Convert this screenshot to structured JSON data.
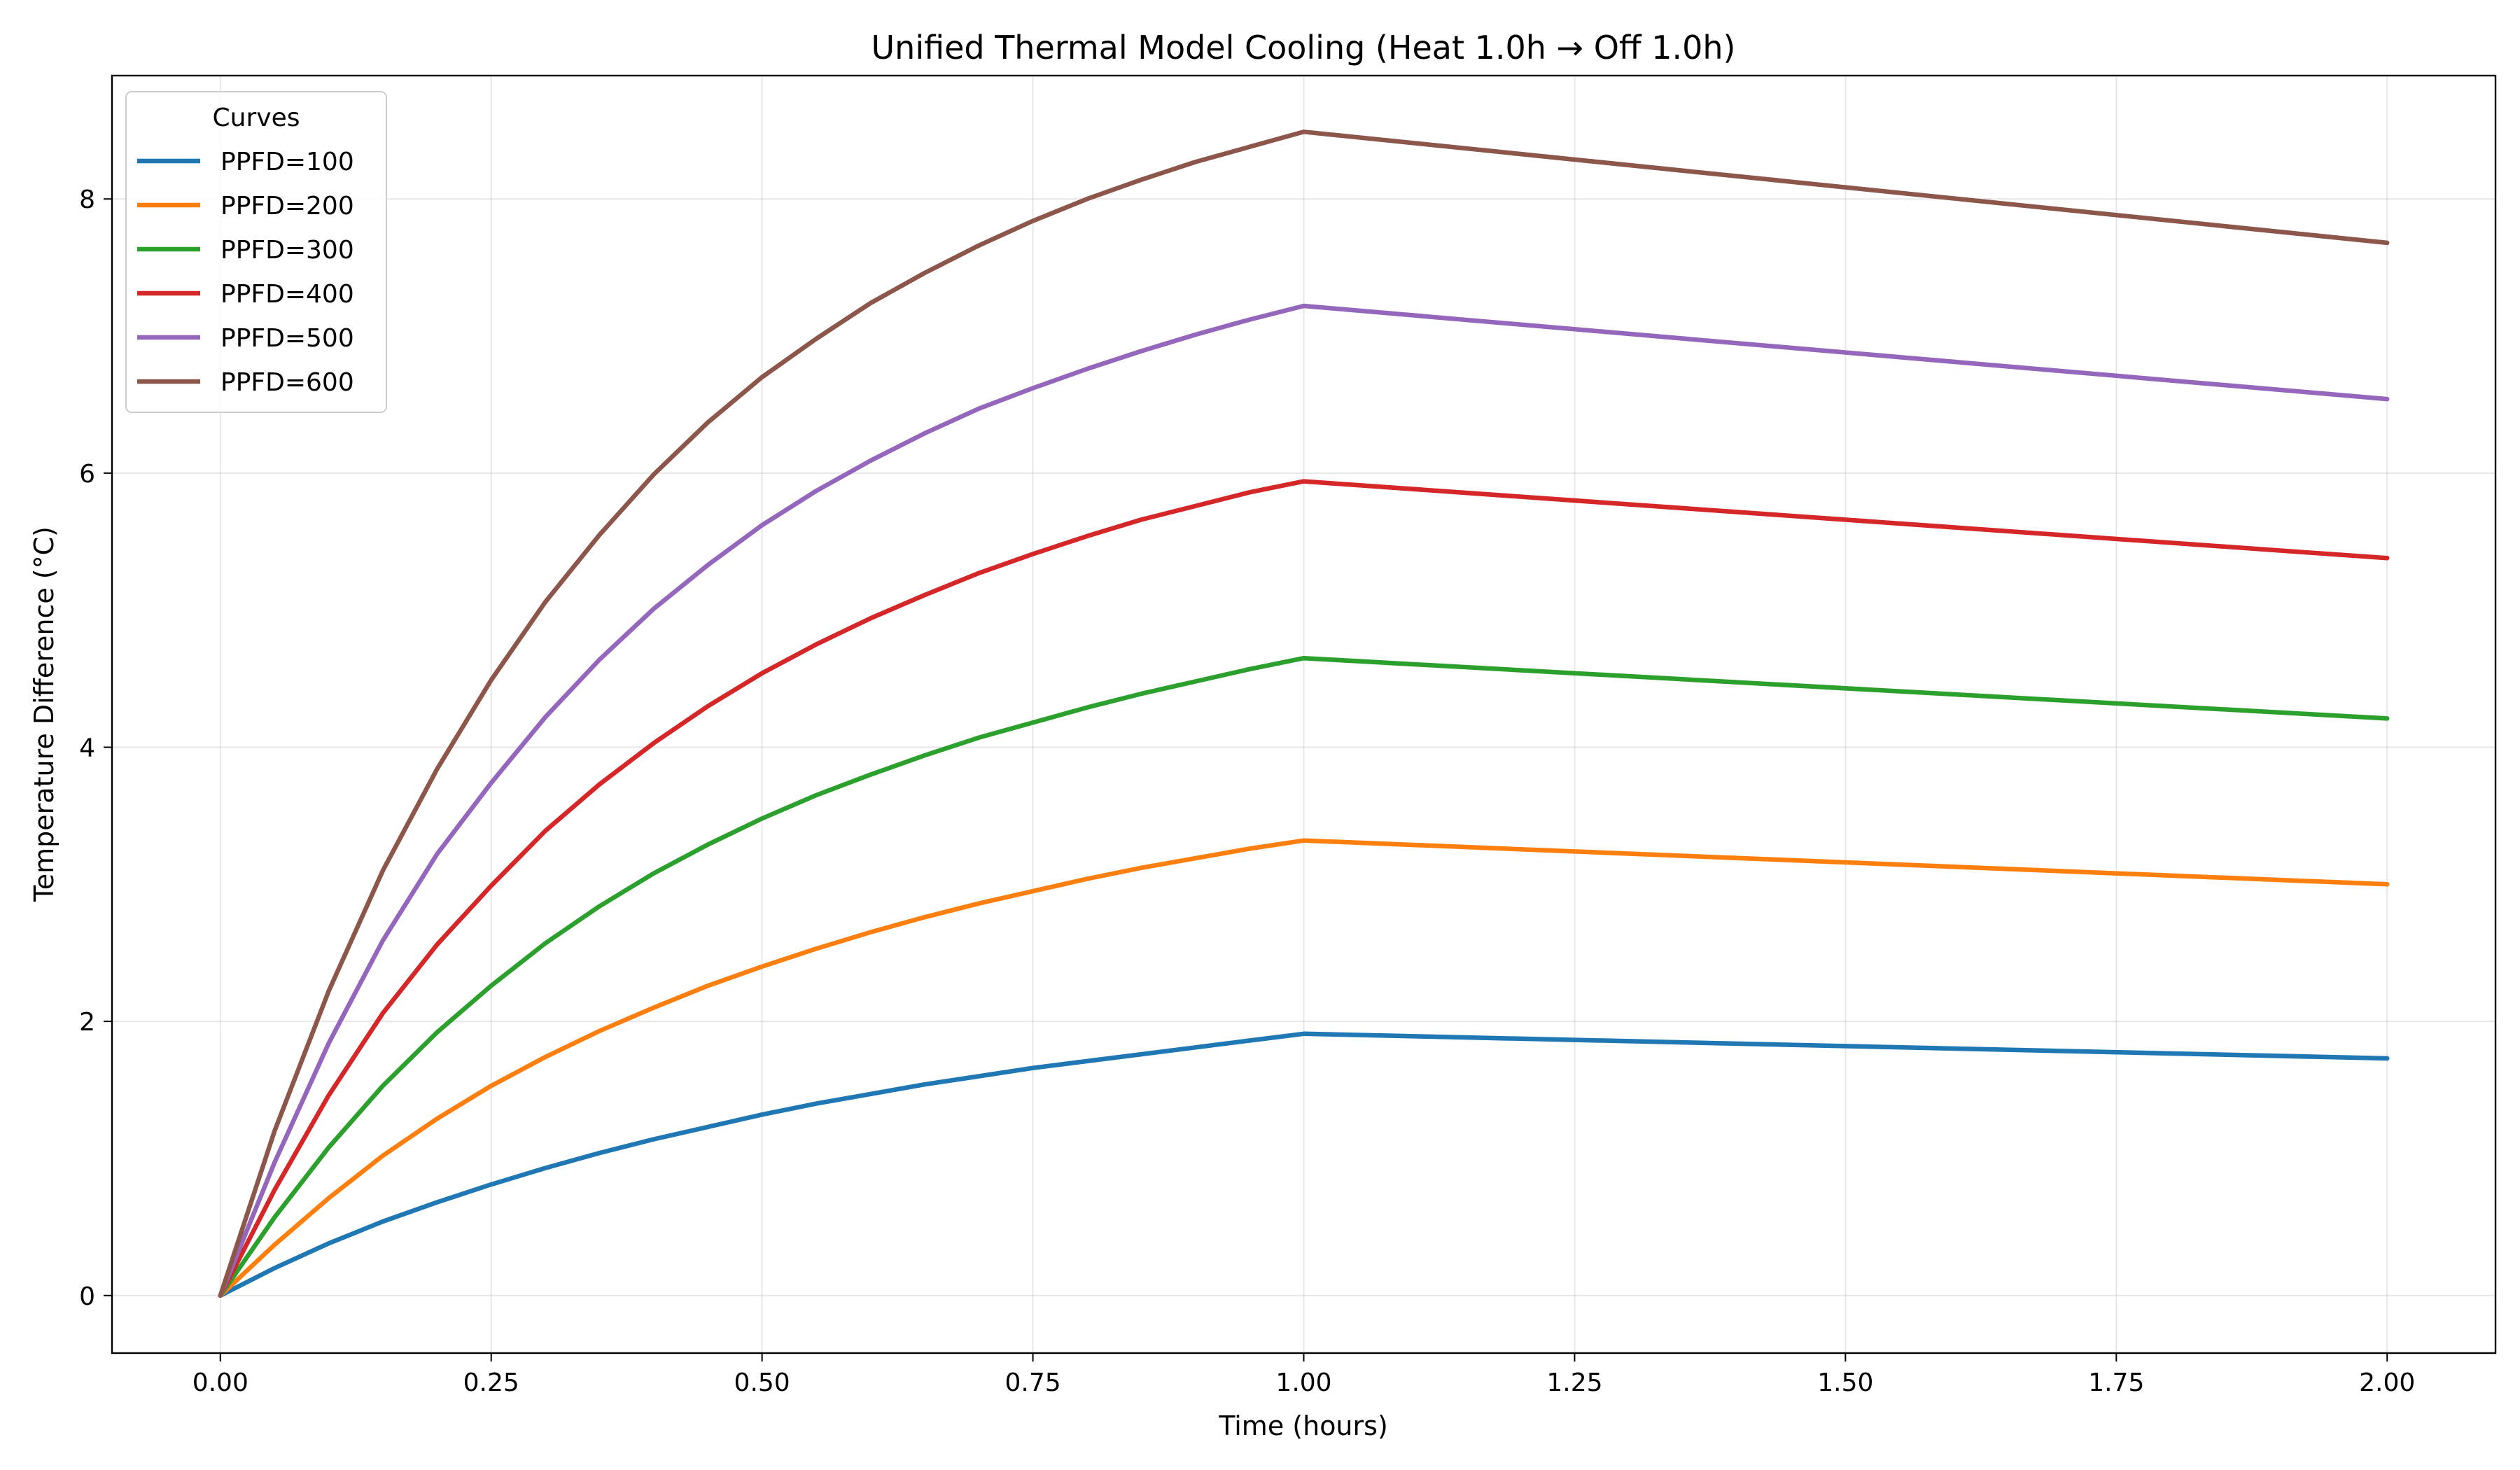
{
  "chart_data": {
    "type": "line",
    "title": "Unified Thermal Model Cooling (Heat 1.0h → Off 1.0h)",
    "xlabel": "Time (hours)",
    "ylabel": "Temperature Difference (°C)",
    "xlim": [
      -0.1,
      2.1
    ],
    "ylim": [
      -0.42,
      8.9
    ],
    "x_ticks": [
      0.0,
      0.25,
      0.5,
      0.75,
      1.0,
      1.25,
      1.5,
      1.75,
      2.0
    ],
    "x_tick_labels": [
      "0.00",
      "0.25",
      "0.50",
      "0.75",
      "1.00",
      "1.25",
      "1.50",
      "1.75",
      "2.00"
    ],
    "y_ticks": [
      0,
      2,
      4,
      6,
      8
    ],
    "y_tick_labels": [
      "0",
      "2",
      "4",
      "6",
      "8"
    ],
    "grid": true,
    "legend": {
      "title": "Curves",
      "placement": "top-left"
    },
    "x": [
      0.0,
      0.05,
      0.1,
      0.15,
      0.2,
      0.25,
      0.3,
      0.35,
      0.4,
      0.45,
      0.5,
      0.55,
      0.6,
      0.65,
      0.7,
      0.75,
      0.8,
      0.85,
      0.9,
      0.95,
      1.0,
      2.0
    ],
    "series": [
      {
        "name": "PPFD=100",
        "color": "#1f77b4",
        "values": [
          0.0,
          0.2,
          0.38,
          0.54,
          0.68,
          0.81,
          0.93,
          1.04,
          1.14,
          1.23,
          1.32,
          1.4,
          1.47,
          1.54,
          1.6,
          1.66,
          1.71,
          1.76,
          1.81,
          1.86,
          1.91,
          1.73
        ]
      },
      {
        "name": "PPFD=200",
        "color": "#ff7f0e",
        "values": [
          0.0,
          0.37,
          0.71,
          1.02,
          1.29,
          1.53,
          1.74,
          1.93,
          2.1,
          2.26,
          2.4,
          2.53,
          2.65,
          2.76,
          2.86,
          2.95,
          3.04,
          3.12,
          3.19,
          3.26,
          3.32,
          3.0
        ]
      },
      {
        "name": "PPFD=300",
        "color": "#2ca02c",
        "values": [
          0.0,
          0.57,
          1.08,
          1.53,
          1.92,
          2.26,
          2.57,
          2.84,
          3.08,
          3.29,
          3.48,
          3.65,
          3.8,
          3.94,
          4.07,
          4.18,
          4.29,
          4.39,
          4.48,
          4.57,
          4.65,
          4.21
        ]
      },
      {
        "name": "PPFD=400",
        "color": "#d62728",
        "values": [
          0.0,
          0.77,
          1.46,
          2.06,
          2.56,
          2.99,
          3.39,
          3.73,
          4.03,
          4.3,
          4.54,
          4.75,
          4.94,
          5.11,
          5.27,
          5.41,
          5.54,
          5.66,
          5.76,
          5.86,
          5.94,
          5.38
        ]
      },
      {
        "name": "PPFD=500",
        "color": "#9467bd",
        "values": [
          0.0,
          0.97,
          1.84,
          2.59,
          3.22,
          3.74,
          4.22,
          4.64,
          5.01,
          5.33,
          5.62,
          5.87,
          6.09,
          6.29,
          6.47,
          6.62,
          6.76,
          6.89,
          7.01,
          7.12,
          7.22,
          6.54
        ]
      },
      {
        "name": "PPFD=600",
        "color": "#8c564b",
        "values": [
          0.0,
          1.2,
          2.22,
          3.1,
          3.84,
          4.49,
          5.06,
          5.55,
          5.99,
          6.37,
          6.7,
          6.98,
          7.24,
          7.46,
          7.66,
          7.84,
          8.0,
          8.14,
          8.27,
          8.38,
          8.49,
          7.68
        ]
      }
    ]
  }
}
